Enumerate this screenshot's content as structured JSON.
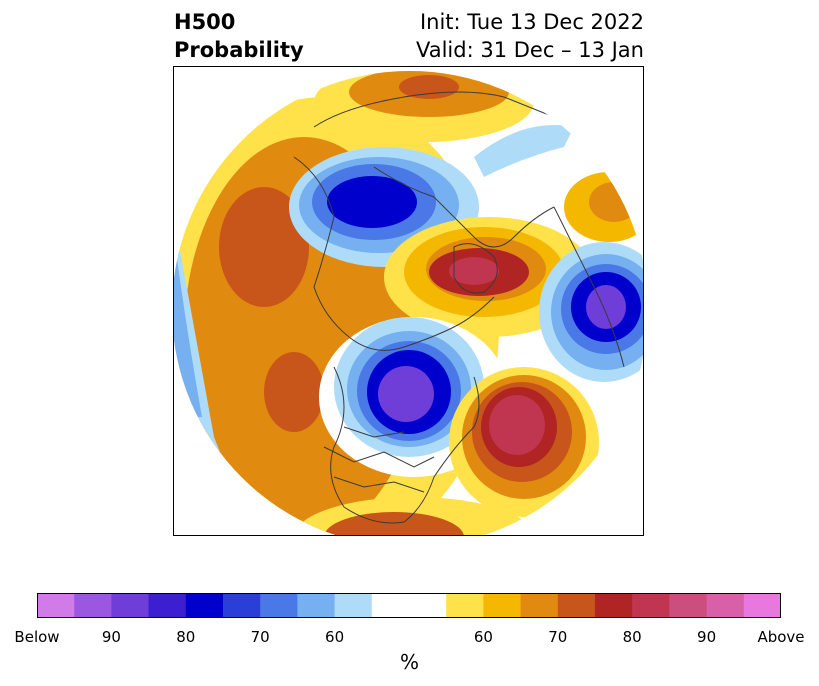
{
  "title": {
    "left_line1": "H500",
    "left_line2": "Probability",
    "right_line1": "Init: Tue 13 Dec 2022",
    "right_line2": "Valid: 31 Dec – 13 Jan"
  },
  "map": {
    "projection": "north polar stereographic (hemispheric disk)",
    "features": [
      "coastlines",
      "country borders",
      "US state borders"
    ]
  },
  "colorbar": {
    "colors": [
      "#d17be8",
      "#9b57e0",
      "#6f3dd8",
      "#3b1fd0",
      "#0000cc",
      "#2a3fd8",
      "#4a78e6",
      "#76b0f0",
      "#aedcf8",
      "#ffffff",
      "#ffffff",
      "#ffe24a",
      "#f5b800",
      "#e08a10",
      "#c8561a",
      "#b02424",
      "#c03550",
      "#cc4e7e",
      "#d860a8",
      "#e878e0"
    ],
    "ticks": [
      "Below",
      "90",
      "80",
      "70",
      "60",
      "60",
      "70",
      "80",
      "90",
      "Above"
    ],
    "unit": "%"
  }
}
